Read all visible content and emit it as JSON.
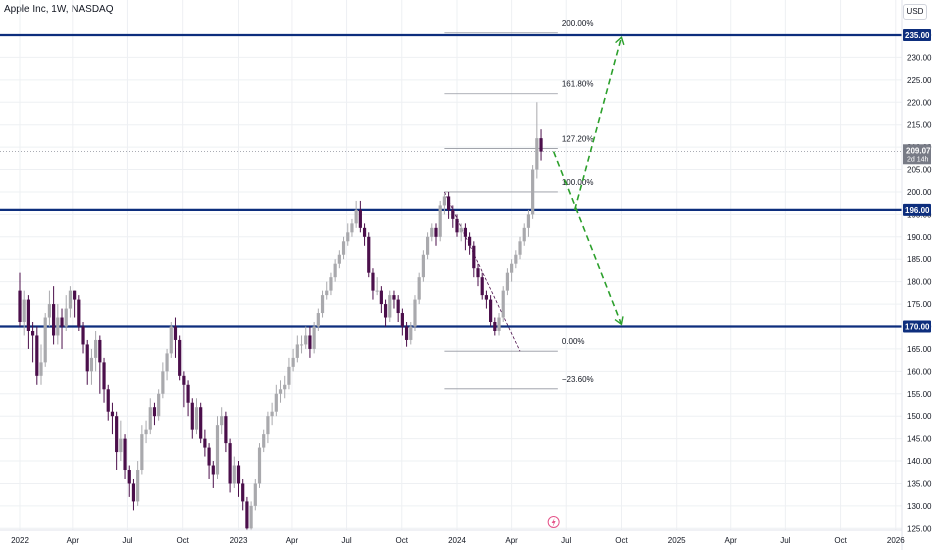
{
  "header": {
    "title": "Apple Inc, 1W, NASDAQ",
    "currency": "USD"
  },
  "colors": {
    "up": "#a9a9ad",
    "down": "#4b0f4b",
    "level": "#0d2e7d",
    "fib": "#9598a1",
    "projection": "#2ca02c",
    "price_tag": "#787b86",
    "grid": "#eef0f3"
  },
  "chart_data": {
    "type": "candlestick",
    "title": "Apple Inc, 1W, NASDAQ",
    "ylim": [
      123.5,
      238.5
    ],
    "y_ticks": [
      125,
      130,
      135,
      140,
      145,
      150,
      155,
      160,
      165,
      170,
      175,
      180,
      185,
      190,
      195,
      200,
      205,
      210,
      215,
      220,
      225,
      230,
      235
    ],
    "y_tick_labels": [
      "125.00",
      "130.00",
      "135.00",
      "140.00",
      "145.00",
      "150.00",
      "155.00",
      "160.00",
      "165.00",
      "170.00",
      "175.00",
      "180.00",
      "185.00",
      "190.00",
      "195.00",
      "200.00",
      "205.00",
      "210.00",
      "215.00",
      "220.00",
      "225.00",
      "230.00",
      "235.00"
    ],
    "x_ticks": [
      {
        "label": "2022",
        "date": "2022-01-03"
      },
      {
        "label": "Apr",
        "date": "2022-04-01"
      },
      {
        "label": "Jul",
        "date": "2022-07-01"
      },
      {
        "label": "Oct",
        "date": "2022-10-01"
      },
      {
        "label": "2023",
        "date": "2023-01-02"
      },
      {
        "label": "Apr",
        "date": "2023-04-01"
      },
      {
        "label": "Jul",
        "date": "2023-07-01"
      },
      {
        "label": "Oct",
        "date": "2023-10-01"
      },
      {
        "label": "2024",
        "date": "2024-01-01"
      },
      {
        "label": "Apr",
        "date": "2024-04-01"
      },
      {
        "label": "Jul",
        "date": "2024-07-01"
      },
      {
        "label": "Oct",
        "date": "2024-10-01"
      },
      {
        "label": "2025",
        "date": "2025-01-01"
      },
      {
        "label": "Apr",
        "date": "2025-04-01"
      },
      {
        "label": "Jul",
        "date": "2025-07-01"
      },
      {
        "label": "Oct",
        "date": "2025-10-01"
      },
      {
        "label": "2026",
        "date": "2026-01-01"
      }
    ],
    "candles_close": [
      171,
      176,
      169,
      168,
      159,
      162,
      172,
      175,
      168,
      172,
      170,
      174,
      178,
      176,
      170,
      166,
      160,
      163,
      167,
      162,
      156,
      151,
      150,
      142,
      145,
      138,
      135,
      131,
      138,
      146,
      147,
      152,
      150,
      155,
      160,
      164,
      170,
      167,
      159,
      157,
      153,
      147,
      152,
      145,
      143,
      139,
      137,
      148,
      150,
      144,
      135,
      139,
      135,
      131,
      125,
      130,
      135,
      143,
      146,
      150,
      151,
      155,
      156,
      157,
      161,
      163,
      166,
      166,
      168,
      165,
      170,
      173,
      177,
      178,
      181,
      184,
      186,
      189,
      191,
      193,
      196,
      192,
      190,
      182,
      178,
      178,
      175,
      172,
      177,
      176,
      173,
      170,
      167,
      170,
      176,
      181,
      186,
      190,
      192,
      190,
      197,
      199,
      196,
      194,
      191,
      192,
      190,
      188,
      183,
      181,
      177,
      176,
      171,
      169,
      172,
      178,
      182,
      184,
      186,
      189,
      192,
      195,
      205,
      212,
      209
    ],
    "series_note": "weekly OHLC candles, close values shown; highs/lows approximate",
    "candles": {
      "start": "2022-01-03",
      "ohlc": [
        [
          178,
          182,
          170,
          171
        ],
        [
          171,
          178,
          168,
          176
        ],
        [
          176,
          177,
          165,
          169
        ],
        [
          169,
          171,
          162,
          168
        ],
        [
          168,
          170,
          157,
          159
        ],
        [
          159,
          166,
          157,
          162
        ],
        [
          162,
          173,
          161,
          172
        ],
        [
          172,
          178,
          170,
          175
        ],
        [
          175,
          179,
          166,
          168
        ],
        [
          168,
          175,
          166,
          172
        ],
        [
          172,
          174,
          165,
          170
        ],
        [
          170,
          177,
          169,
          174
        ],
        [
          174,
          179,
          172,
          178
        ],
        [
          178,
          178,
          172,
          176
        ],
        [
          176,
          177,
          169,
          170
        ],
        [
          170,
          171,
          164,
          166
        ],
        [
          166,
          167,
          157,
          160
        ],
        [
          160,
          165,
          157,
          163
        ],
        [
          163,
          169,
          160,
          167
        ],
        [
          167,
          168,
          155,
          162
        ],
        [
          162,
          163,
          153,
          156
        ],
        [
          156,
          157,
          149,
          151
        ],
        [
          151,
          153,
          146,
          150
        ],
        [
          150,
          151,
          138,
          142
        ],
        [
          142,
          149,
          140,
          145
        ],
        [
          145,
          146,
          136,
          138
        ],
        [
          138,
          139,
          132,
          135
        ],
        [
          135,
          136,
          129,
          131
        ],
        [
          131,
          140,
          130,
          138
        ],
        [
          138,
          148,
          137,
          146
        ],
        [
          146,
          149,
          144,
          147
        ],
        [
          147,
          154,
          146,
          152
        ],
        [
          152,
          153,
          148,
          150
        ],
        [
          150,
          156,
          149,
          155
        ],
        [
          155,
          162,
          154,
          160
        ],
        [
          160,
          165,
          158,
          164
        ],
        [
          164,
          171,
          163,
          170
        ],
        [
          170,
          172,
          163,
          167
        ],
        [
          167,
          168,
          158,
          159
        ],
        [
          159,
          160,
          152,
          157
        ],
        [
          157,
          158,
          150,
          153
        ],
        [
          153,
          154,
          145,
          147
        ],
        [
          147,
          154,
          146,
          152
        ],
        [
          152,
          153,
          144,
          145
        ],
        [
          145,
          147,
          141,
          143
        ],
        [
          143,
          144,
          136,
          139
        ],
        [
          139,
          140,
          134,
          137
        ],
        [
          137,
          150,
          136,
          148
        ],
        [
          148,
          152,
          146,
          150
        ],
        [
          150,
          151,
          142,
          144
        ],
        [
          144,
          145,
          133,
          135
        ],
        [
          135,
          141,
          134,
          139
        ],
        [
          139,
          140,
          132,
          135
        ],
        [
          135,
          136,
          129,
          131
        ],
        [
          131,
          132,
          124.5,
          125
        ],
        [
          125,
          131,
          124.5,
          130
        ],
        [
          130,
          136,
          129,
          135
        ],
        [
          135,
          144,
          134,
          143
        ],
        [
          143,
          147,
          142,
          146
        ],
        [
          146,
          151,
          144,
          150
        ],
        [
          150,
          153,
          148,
          151
        ],
        [
          151,
          157,
          150,
          155
        ],
        [
          155,
          158,
          153,
          156
        ],
        [
          156,
          159,
          154,
          157
        ],
        [
          157,
          163,
          156,
          161
        ],
        [
          161,
          165,
          160,
          163
        ],
        [
          163,
          168,
          162,
          166
        ],
        [
          166,
          168,
          164,
          166
        ],
        [
          166,
          170,
          165,
          168
        ],
        [
          168,
          170,
          163,
          165
        ],
        [
          165,
          171,
          164,
          170
        ],
        [
          170,
          174,
          169,
          173
        ],
        [
          173,
          178,
          172,
          177
        ],
        [
          177,
          180,
          176,
          178
        ],
        [
          178,
          182,
          177,
          181
        ],
        [
          181,
          185,
          180,
          184
        ],
        [
          184,
          187,
          183,
          186
        ],
        [
          186,
          190,
          185,
          189
        ],
        [
          189,
          193,
          188,
          191
        ],
        [
          191,
          194,
          190,
          193
        ],
        [
          193,
          198,
          192,
          196
        ],
        [
          196,
          198,
          191,
          192
        ],
        [
          192,
          193,
          188,
          190
        ],
        [
          190,
          191,
          181,
          182
        ],
        [
          182,
          183,
          176,
          178
        ],
        [
          178,
          181,
          177,
          178
        ],
        [
          178,
          179,
          173,
          175
        ],
        [
          175,
          176,
          170,
          172
        ],
        [
          172,
          178,
          171,
          177
        ],
        [
          177,
          178,
          174,
          176
        ],
        [
          176,
          177,
          171,
          173
        ],
        [
          173,
          174,
          168,
          170
        ],
        [
          170,
          171,
          165.5,
          167
        ],
        [
          167,
          171,
          166,
          170
        ],
        [
          170,
          177,
          169,
          176
        ],
        [
          176,
          182,
          175,
          181
        ],
        [
          181,
          187,
          180,
          186
        ],
        [
          186,
          191,
          185,
          190
        ],
        [
          190,
          193,
          189,
          192
        ],
        [
          192,
          193,
          188,
          190
        ],
        [
          190,
          198,
          189,
          197
        ],
        [
          197,
          199.6,
          195,
          199
        ],
        [
          199,
          200,
          194,
          196
        ],
        [
          196,
          197,
          192,
          194
        ],
        [
          194,
          195,
          190,
          191
        ],
        [
          191,
          193,
          189,
          192
        ],
        [
          192,
          193,
          187,
          190
        ],
        [
          190,
          191,
          186,
          188
        ],
        [
          188,
          189,
          181,
          183
        ],
        [
          183,
          184,
          179,
          181
        ],
        [
          181,
          182,
          176,
          177
        ],
        [
          177,
          178,
          174,
          176
        ],
        [
          176,
          177,
          170,
          171
        ],
        [
          171,
          172,
          168,
          169
        ],
        [
          169,
          173,
          168,
          172
        ],
        [
          172,
          179,
          171,
          178
        ],
        [
          178,
          183,
          177,
          182
        ],
        [
          182,
          185,
          180,
          184
        ],
        [
          184,
          187,
          183,
          186
        ],
        [
          186,
          190,
          185,
          189
        ],
        [
          189,
          193,
          188,
          192
        ],
        [
          192,
          196,
          190,
          195
        ],
        [
          195,
          206,
          194,
          205
        ],
        [
          205,
          220,
          203,
          212
        ],
        [
          212,
          214,
          207,
          209
        ]
      ]
    },
    "horizontal_levels": [
      {
        "value": 235,
        "label": "235.00"
      },
      {
        "value": 196,
        "label": "196.00"
      },
      {
        "value": 170,
        "label": "170.00"
      }
    ],
    "last_price": {
      "value": 209.07,
      "label": "209.07",
      "countdown": "2d 14h"
    },
    "fibonacci": {
      "start": {
        "date": "2023-12-11",
        "price": 200
      },
      "end": {
        "date": "2024-04-15",
        "price": 164.5
      },
      "levels": [
        {
          "ratio": "200.00%",
          "price": 235.5
        },
        {
          "ratio": "161.80%",
          "price": 221.9
        },
        {
          "ratio": "127.20%",
          "price": 209.7
        },
        {
          "ratio": "100.00%",
          "price": 200
        },
        {
          "ratio": "0.00%",
          "price": 164.5
        },
        {
          "ratio": "−23.60%",
          "price": 156.1
        }
      ]
    },
    "projection_paths": [
      {
        "from": {
          "date": "2024-06-10",
          "price": 209
        },
        "to": {
          "date": "2024-10-01",
          "price": 170.5
        }
      },
      {
        "from": {
          "date": "2024-07-15",
          "price": 196
        },
        "to": {
          "date": "2024-10-01",
          "price": 234.5
        }
      }
    ]
  }
}
